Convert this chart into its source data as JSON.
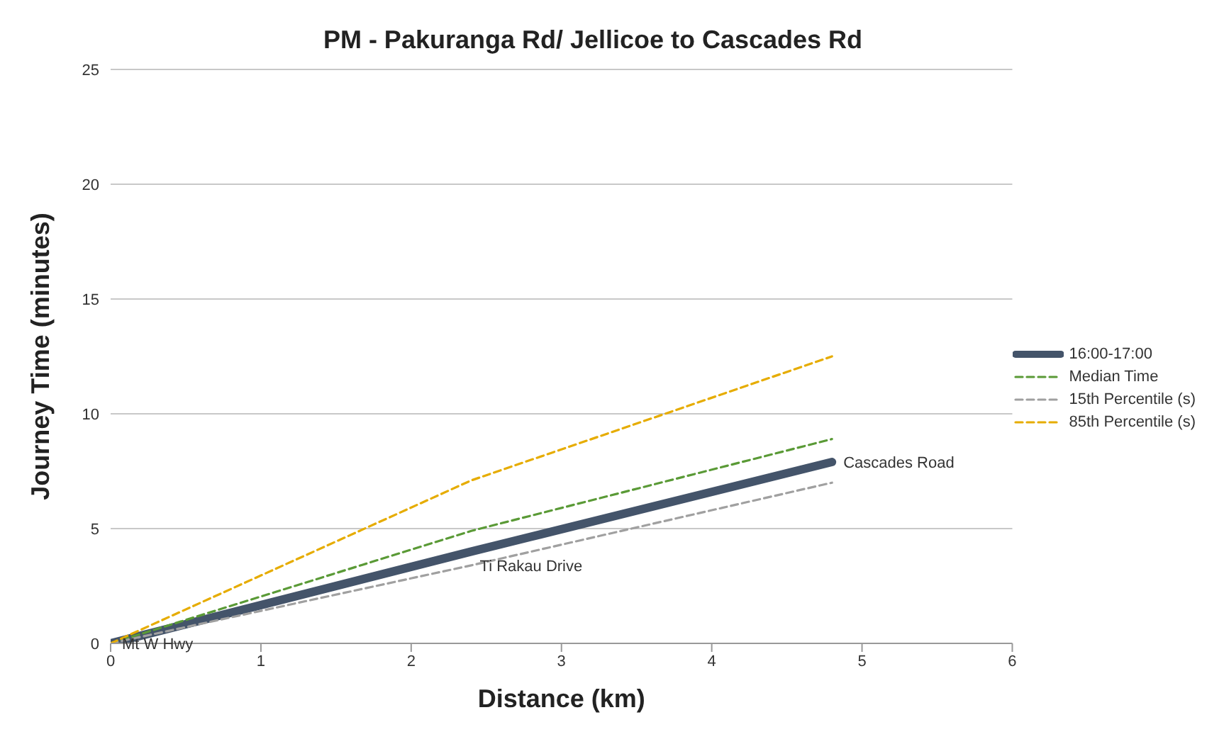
{
  "chart_data": {
    "type": "line",
    "title": "PM - Pakuranga Rd/ Jellicoe to Cascades Rd",
    "xlabel": "Distance (km)",
    "ylabel": "Journey Time (minutes)",
    "xlim": [
      0,
      6
    ],
    "xticks": [
      0,
      1,
      2,
      3,
      4,
      5,
      6
    ],
    "ylim": [
      0,
      25
    ],
    "yticks": [
      0,
      5,
      10,
      15,
      20,
      25
    ],
    "grid": "y",
    "legend": "right",
    "marker": "none",
    "series": [
      {
        "name": "16:00-17:00",
        "color": "#44546a",
        "x": [
          0,
          2.4,
          4.8
        ],
        "values": [
          0,
          4.0,
          7.9
        ],
        "line_style": "solid"
      },
      {
        "name": "Median Time",
        "color": "#5a9a36",
        "x": [
          0,
          2.4,
          4.8
        ],
        "values": [
          0,
          4.9,
          8.9
        ],
        "line_style": "dashed"
      },
      {
        "name": "15th Percentile (s)",
        "color": "#a0a0a0",
        "x": [
          0,
          2.4,
          4.8
        ],
        "values": [
          0,
          3.4,
          7.0
        ],
        "line_style": "dashed"
      },
      {
        "name": "85th Percentile (s)",
        "color": "#e6ac00",
        "x": [
          0,
          2.4,
          4.8
        ],
        "values": [
          0,
          7.1,
          12.5
        ],
        "line_style": "dashed"
      }
    ],
    "annotations": [
      {
        "text": "Mt W Hwy",
        "x": 0,
        "y": 0
      },
      {
        "text": "Ti Rakau Drive",
        "x": 2.4,
        "y": 4.0
      },
      {
        "text": "Cascades Road",
        "x": 4.8,
        "y": 7.9
      }
    ]
  }
}
